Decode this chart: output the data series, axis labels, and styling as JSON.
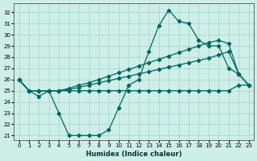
{
  "xlabel": "Humidex (Indice chaleur)",
  "xlim": [
    -0.5,
    23.5
  ],
  "ylim": [
    20.6,
    32.8
  ],
  "yticks": [
    21,
    22,
    23,
    24,
    25,
    26,
    27,
    28,
    29,
    30,
    31,
    32
  ],
  "xticks": [
    0,
    1,
    2,
    3,
    4,
    5,
    6,
    7,
    8,
    9,
    10,
    11,
    12,
    13,
    14,
    15,
    16,
    17,
    18,
    19,
    20,
    21,
    22,
    23
  ],
  "bg_color": "#ceeee8",
  "grid_color": "#aad8d0",
  "line_color": "#006660",
  "series": [
    {
      "x": [
        0,
        1,
        2,
        3,
        4,
        5,
        6,
        7,
        8,
        9,
        10,
        11,
        12,
        13,
        14,
        15,
        16,
        17,
        18,
        19,
        20,
        21,
        22,
        23
      ],
      "y": [
        26,
        25,
        24.5,
        25,
        23,
        21,
        21,
        21,
        21,
        21.5,
        23.5,
        25.5,
        26,
        28.5,
        30.8,
        32.2,
        31.2,
        31,
        29.5,
        29,
        29,
        27,
        26.5,
        25.5
      ]
    },
    {
      "x": [
        0,
        1,
        2,
        3,
        4,
        5,
        6,
        7,
        8,
        9,
        10,
        11,
        12,
        13,
        14,
        15,
        16,
        17,
        18,
        19,
        20,
        21,
        22,
        23
      ],
      "y": [
        26,
        25,
        25,
        25,
        25,
        25,
        25,
        25,
        25,
        25,
        25,
        25,
        25,
        25,
        25,
        25,
        25,
        25,
        25,
        25,
        25,
        25,
        25.5,
        25.5
      ]
    },
    {
      "x": [
        0,
        1,
        2,
        3,
        4,
        5,
        6,
        7,
        8,
        9,
        10,
        11,
        12,
        13,
        14,
        15,
        16,
        17,
        18,
        19,
        20,
        21,
        22,
        23
      ],
      "y": [
        26,
        25,
        25,
        25,
        25,
        25.2,
        25.5,
        25.7,
        26.0,
        26.3,
        26.6,
        26.9,
        27.2,
        27.5,
        27.8,
        28.1,
        28.4,
        28.7,
        29.0,
        29.3,
        29.5,
        29.2,
        26.5,
        25.5
      ]
    },
    {
      "x": [
        0,
        1,
        2,
        3,
        4,
        5,
        6,
        7,
        8,
        9,
        10,
        11,
        12,
        13,
        14,
        15,
        16,
        17,
        18,
        19,
        20,
        21,
        22,
        23
      ],
      "y": [
        26,
        25,
        25,
        25,
        25,
        25.1,
        25.3,
        25.5,
        25.7,
        25.9,
        26.1,
        26.3,
        26.5,
        26.7,
        26.9,
        27.1,
        27.3,
        27.5,
        27.7,
        27.9,
        28.2,
        28.5,
        26.5,
        25.5
      ]
    }
  ]
}
